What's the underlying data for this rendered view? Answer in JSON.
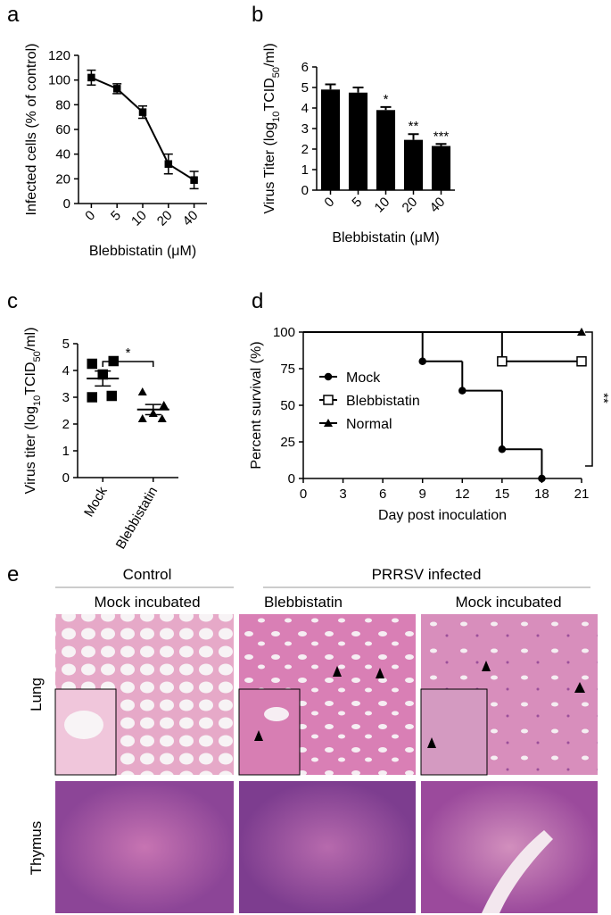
{
  "chart_data": [
    {
      "panel": "a",
      "type": "line",
      "ylabel": "Infected cells (% of control)",
      "xlabel": "Blebbistatin (μM)",
      "categories": [
        "0",
        "5",
        "10",
        "20",
        "40"
      ],
      "values": [
        102,
        93,
        74,
        32,
        19
      ],
      "errors": [
        6,
        4,
        5,
        8,
        7
      ],
      "color": "#000000",
      "ylim": [
        0,
        120
      ],
      "yticks": [
        0,
        20,
        40,
        60,
        80,
        100,
        120
      ]
    },
    {
      "panel": "b",
      "type": "bar",
      "ylabel_parts": [
        "Virus Titer (log",
        "10",
        "TCID",
        "50",
        "/ml)"
      ],
      "xlabel": "Blebbistatin (μM)",
      "categories": [
        "0",
        "5",
        "10",
        "20",
        "40"
      ],
      "values": [
        4.9,
        4.75,
        3.9,
        2.45,
        2.15
      ],
      "errors": [
        0.25,
        0.25,
        0.15,
        0.28,
        0.1
      ],
      "annotations": [
        null,
        null,
        "*",
        "**",
        "***"
      ],
      "color": "#000000",
      "ylim": [
        0,
        6
      ],
      "yticks": [
        0,
        1,
        2,
        3,
        4,
        5,
        6
      ]
    },
    {
      "panel": "c",
      "type": "dot",
      "ylabel_parts": [
        "Virus titer (log",
        "10",
        "TCID",
        "50",
        "/ml)"
      ],
      "categories": [
        "Mock",
        "Blebbistatin"
      ],
      "groups": [
        {
          "marker": "square",
          "values": [
            4.25,
            4.35,
            3.85,
            3.0,
            3.05
          ],
          "mean": 3.7,
          "sem": 0.28
        },
        {
          "marker": "triangle",
          "values": [
            3.2,
            2.7,
            2.4,
            2.2,
            2.2
          ],
          "mean": 2.54,
          "sem": 0.19
        }
      ],
      "annotation": "*",
      "color": "#000000",
      "ylim": [
        0,
        5
      ],
      "yticks": [
        0,
        1,
        2,
        3,
        4,
        5
      ]
    },
    {
      "panel": "d",
      "type": "step",
      "ylabel": "Percent survival (%)",
      "xlabel": "Day post inoculation",
      "series": [
        {
          "name": "Mock",
          "marker": "circle",
          "x": [
            0,
            9,
            12,
            15,
            18
          ],
          "values": [
            100,
            80,
            60,
            20,
            0
          ]
        },
        {
          "name": "Blebbistatin",
          "marker": "square",
          "x": [
            0,
            15,
            21
          ],
          "values": [
            100,
            80,
            80
          ]
        },
        {
          "name": "Normal",
          "marker": "triangle",
          "x": [
            0,
            21
          ],
          "values": [
            100,
            100
          ]
        }
      ],
      "annotation": "**",
      "legend": "center-left",
      "color": "#000000",
      "xlim": [
        0,
        21
      ],
      "xticks": [
        0,
        3,
        6,
        9,
        12,
        15,
        18,
        21
      ],
      "ylim": [
        0,
        100
      ],
      "yticks": [
        0,
        25,
        50,
        75,
        100
      ]
    }
  ],
  "panel_e": {
    "letter": "e",
    "groups": [
      "Control",
      "PRRSV infected"
    ],
    "columns": [
      "Mock incubated",
      "Blebbistatin",
      "Mock incubated"
    ],
    "rows": [
      "Lung",
      "Thymus"
    ]
  }
}
